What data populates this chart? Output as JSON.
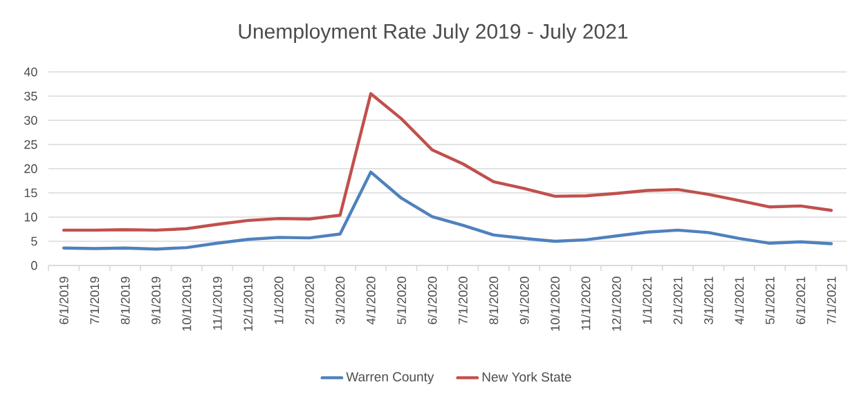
{
  "chart_data": {
    "type": "line",
    "title": "Unemployment Rate July 2019 - July 2021",
    "categories": [
      "6/1/2019",
      "7/1/2019",
      "8/1/2019",
      "9/1/2019",
      "10/1/2019",
      "11/1/2019",
      "12/1/2019",
      "1/1/2020",
      "2/1/2020",
      "3/1/2020",
      "4/1/2020",
      "5/1/2020",
      "6/1/2020",
      "7/1/2020",
      "8/1/2020",
      "9/1/2020",
      "10/1/2020",
      "11/1/2020",
      "12/1/2020",
      "1/1/2021",
      "2/1/2021",
      "3/1/2021",
      "4/1/2021",
      "5/1/2021",
      "6/1/2021",
      "7/1/2021"
    ],
    "series": [
      {
        "name": "Warren County",
        "color": "#4f81bd",
        "values": [
          3.6,
          3.5,
          3.6,
          3.4,
          3.7,
          4.6,
          5.4,
          5.8,
          5.7,
          6.5,
          19.3,
          13.9,
          10.1,
          8.3,
          6.3,
          5.6,
          5.0,
          5.3,
          6.1,
          6.9,
          7.3,
          6.8,
          5.6,
          4.6,
          4.9,
          4.5
        ]
      },
      {
        "name": "New York State",
        "color": "#c0504d",
        "values": [
          7.3,
          7.3,
          7.4,
          7.3,
          7.6,
          8.5,
          9.3,
          9.7,
          9.6,
          10.4,
          35.5,
          30.3,
          23.9,
          21.0,
          17.3,
          15.9,
          14.3,
          14.4,
          14.9,
          15.5,
          15.7,
          14.7,
          13.4,
          12.1,
          12.3,
          11.4
        ]
      }
    ],
    "ylim": [
      0,
      40
    ],
    "yticks": [
      0,
      5,
      10,
      15,
      20,
      25,
      30,
      35,
      40
    ],
    "grid": "y",
    "legend": "bottom",
    "marker": "none",
    "line_style": "solid"
  }
}
